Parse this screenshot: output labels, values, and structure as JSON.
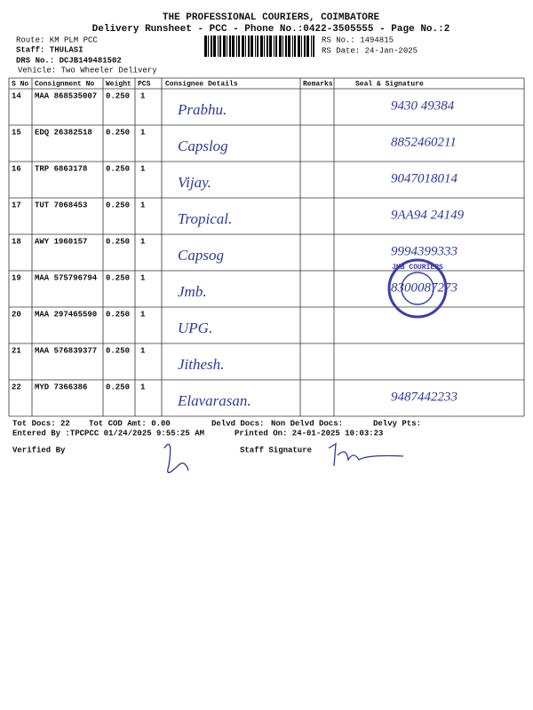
{
  "header": {
    "company": "THE PROFESSIONAL COURIERS, COIMBATORE",
    "title": "Delivery Runsheet - PCC - Phone No.:0422-3505555 - Page No.:2",
    "route": "Route: KM PLM PCC",
    "staff": "Staff: THULASI",
    "drs_no": "DRS No.: DCJB149481502",
    "vehicle": "Vehicle: Two Wheeler Delivery",
    "rs_no": "RS No.: 1494815",
    "rs_date": "RS Date: 24-Jan-2025"
  },
  "table": {
    "columns": [
      "S No",
      "Consignment No",
      "Weight",
      "PCS",
      "Consignee Details",
      "Remarks",
      "Seal & Signature"
    ],
    "rows": [
      {
        "s_no": "14",
        "consignment_no": "MAA 868535007",
        "weight": "0.250",
        "pcs": "1",
        "consignee": "Prabhu.",
        "seal": "9430 49384"
      },
      {
        "s_no": "15",
        "consignment_no": "EDQ 26382518",
        "weight": "0.250",
        "pcs": "1",
        "consignee": "Capslog",
        "seal": "8852460211"
      },
      {
        "s_no": "16",
        "consignment_no": "TRP 6863178",
        "weight": "0.250",
        "pcs": "1",
        "consignee": "Vijay.",
        "seal": "9047018014"
      },
      {
        "s_no": "17",
        "consignment_no": "TUT 7068453",
        "weight": "0.250",
        "pcs": "1",
        "consignee": "Tropical.",
        "seal": "9AA94 24149"
      },
      {
        "s_no": "18",
        "consignment_no": "AWY 1960157",
        "weight": "0.250",
        "pcs": "1",
        "consignee": "Capsog",
        "seal": "9994399333"
      },
      {
        "s_no": "19",
        "consignment_no": "MAA 575796794",
        "weight": "0.250",
        "pcs": "1",
        "consignee": "Jmb.",
        "seal": "8300087273"
      },
      {
        "s_no": "20",
        "consignment_no": "MAA 297465590",
        "weight": "0.250",
        "pcs": "1",
        "consignee": "UPG."
      },
      {
        "s_no": "21",
        "consignment_no": "MAA 576839377",
        "weight": "0.250",
        "pcs": "1",
        "consignee": "Jithesh."
      },
      {
        "s_no": "22",
        "consignment_no": "MYD 7366386",
        "weight": "0.250",
        "pcs": "1",
        "consignee": "Elavarasan.",
        "seal": "9487442233"
      }
    ]
  },
  "stamp": "JMB COURIERS",
  "footer": {
    "tot_docs": "Tot Docs:  22",
    "tot_cod": "Tot COD Amt:    0.00",
    "delvd_docs": "Delvd Docs:",
    "non_delvd_docs": "Non Delvd Docs:",
    "delvy_pts": "Delvy Pts:",
    "entered_by": "Entered By :TPCPCC 01/24/2025 9:55:25 AM",
    "printed_on": "Printed On: 24-01-2025 10:03:23",
    "verified_by": "Verified By",
    "staff_signature": "Staff Signature"
  }
}
